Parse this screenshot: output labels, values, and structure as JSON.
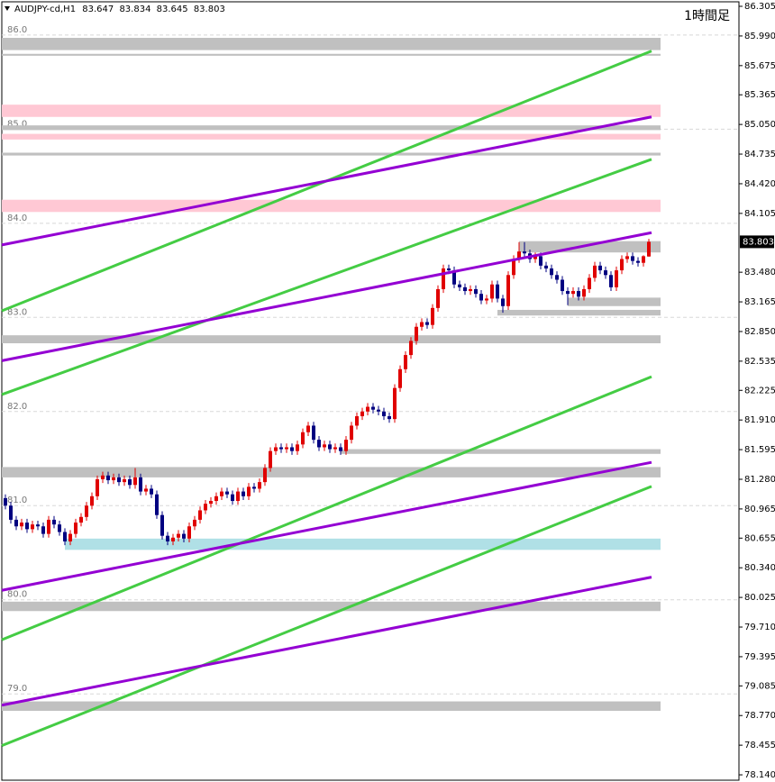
{
  "chart_data": {
    "type": "candlestick",
    "symbol": "AUDJPY-cd,H1",
    "timeframe": "1時間足",
    "up_color": "#e00000",
    "down_color": "#000080",
    "ylim": [
      78.083,
      86.353
    ],
    "yticks": [
      86.305,
      {
        "value": 85.99,
        "label": "85.990"
      },
      85.675,
      85.365,
      {
        "value": 85.05,
        "label": "85.050"
      },
      84.735,
      {
        "value": 84.42,
        "label": "84.420"
      },
      84.105,
      {
        "value": 83.48,
        "label": "83.480"
      },
      83.165,
      {
        "value": 82.85,
        "label": "82.850"
      },
      82.535,
      82.225,
      {
        "value": 81.91,
        "label": "81.910"
      },
      81.595,
      {
        "value": 81.28,
        "label": "81.280"
      },
      80.965,
      80.655,
      {
        "value": 80.34,
        "label": "80.340"
      },
      80.025,
      {
        "value": 79.71,
        "label": "79.710"
      },
      79.395,
      79.085,
      {
        "value": 78.77,
        "label": "78.770"
      },
      78.455,
      {
        "value": 78.14,
        "label": "78.140"
      }
    ],
    "inner_ticks": [
      {
        "value": 86,
        "label": "86.0"
      },
      {
        "value": 85,
        "label": "85.0"
      },
      {
        "value": 84,
        "label": "84.0"
      },
      {
        "value": 83,
        "label": "83.0"
      },
      {
        "value": 82,
        "label": "82.0"
      },
      {
        "value": 81,
        "label": "81.0"
      },
      {
        "value": 80,
        "label": "80.0"
      },
      {
        "value": 79,
        "label": "79.0"
      }
    ],
    "zones": [
      {
        "range": [
          85.84,
          85.97
        ],
        "color": "#c0c0c0"
      },
      {
        "range": [
          85.78,
          85.8
        ],
        "color": "#c0c0c0"
      },
      {
        "range": [
          85.13,
          85.26
        ],
        "color": "#ffc8d4"
      },
      {
        "range": [
          84.99,
          85.04
        ],
        "color": "#c0c0c0"
      },
      {
        "range": [
          84.89,
          84.95
        ],
        "color": "#ffc8d4"
      },
      {
        "range": [
          84.72,
          84.75
        ],
        "color": "#c0c0c0"
      },
      {
        "range": [
          84.12,
          84.25
        ],
        "color": "#ffc8d4"
      },
      {
        "range": [
          83.69,
          83.81
        ],
        "color": "#c0c0c0",
        "start": 95
      },
      {
        "range": [
          83.12,
          83.21
        ],
        "color": "#c0c0c0",
        "start": 104
      },
      {
        "range": [
          83.02,
          83.08
        ],
        "color": "#c0c0c0",
        "start": 91
      },
      {
        "range": [
          82.725,
          82.81
        ],
        "color": "#c0c0c0"
      },
      {
        "range": [
          81.55,
          81.6
        ],
        "color": "#c0c0c0",
        "start": 62
      },
      {
        "range": [
          81.3,
          81.41
        ],
        "color": "#c0c0c0"
      },
      {
        "range": [
          80.53,
          80.65
        ],
        "color": "#b0e0e6",
        "start": 11
      },
      {
        "range": [
          79.88,
          79.98
        ],
        "color": "#c0c0c0"
      },
      {
        "range": [
          78.82,
          78.92
        ],
        "color": "#c0c0c0"
      }
    ],
    "trendlines": [
      {
        "y": [
          83.07,
          85.83
        ],
        "color": "#44cc44"
      },
      {
        "y": [
          82.18,
          84.68
        ],
        "color": "#44cc44"
      },
      {
        "y": [
          79.575,
          82.37
        ],
        "color": "#44cc44"
      },
      {
        "y": [
          78.45,
          81.205
        ],
        "color": "#44cc44"
      },
      {
        "y": [
          83.77,
          85.13
        ],
        "color": "#9400d3"
      },
      {
        "y": [
          82.54,
          83.9
        ],
        "color": "#9400d3"
      },
      {
        "y": [
          80.1,
          81.46
        ],
        "color": "#9400d3"
      },
      {
        "y": [
          78.88,
          80.24
        ],
        "color": "#9400d3"
      }
    ],
    "candles": [
      [
        81.08,
        81.12,
        80.96,
        81.0
      ],
      [
        81.0,
        81.04,
        80.81,
        80.85
      ],
      [
        80.85,
        80.89,
        80.74,
        80.78
      ],
      [
        80.78,
        80.86,
        80.74,
        80.82
      ],
      [
        80.82,
        80.86,
        80.71,
        80.75
      ],
      [
        80.75,
        80.84,
        80.71,
        80.8
      ],
      [
        80.8,
        80.84,
        80.74,
        80.78
      ],
      [
        80.78,
        80.82,
        80.66,
        80.7
      ],
      [
        80.7,
        80.89,
        80.66,
        80.85
      ],
      [
        80.85,
        80.89,
        80.76,
        80.8
      ],
      [
        80.8,
        80.84,
        80.68,
        80.72
      ],
      [
        80.72,
        80.76,
        80.58,
        80.62
      ],
      [
        80.62,
        80.74,
        80.58,
        80.7
      ],
      [
        80.7,
        80.86,
        80.66,
        80.82
      ],
      [
        80.82,
        80.92,
        80.78,
        80.88
      ],
      [
        80.88,
        81.04,
        80.84,
        81.0
      ],
      [
        81.0,
        81.14,
        80.96,
        81.1
      ],
      [
        81.1,
        81.32,
        81.06,
        81.28
      ],
      [
        81.28,
        81.36,
        81.24,
        81.32
      ],
      [
        81.32,
        81.36,
        81.23,
        81.27
      ],
      [
        81.27,
        81.34,
        81.23,
        81.3
      ],
      [
        81.3,
        81.34,
        81.21,
        81.25
      ],
      [
        81.25,
        81.32,
        81.21,
        81.28
      ],
      [
        81.28,
        81.32,
        81.18,
        81.22
      ],
      [
        81.22,
        81.4,
        81.18,
        81.3
      ],
      [
        81.3,
        81.34,
        81.11,
        81.15
      ],
      [
        81.15,
        81.22,
        81.11,
        81.18
      ],
      [
        81.18,
        81.22,
        81.08,
        81.12
      ],
      [
        81.12,
        81.16,
        80.86,
        80.9
      ],
      [
        80.9,
        80.94,
        80.64,
        80.68
      ],
      [
        80.68,
        80.72,
        80.58,
        80.62
      ],
      [
        80.62,
        80.7,
        80.58,
        80.66
      ],
      [
        80.66,
        80.74,
        80.62,
        80.7
      ],
      [
        80.7,
        80.74,
        80.61,
        80.65
      ],
      [
        80.65,
        80.82,
        80.61,
        80.78
      ],
      [
        80.78,
        80.89,
        80.74,
        80.85
      ],
      [
        80.85,
        80.99,
        80.81,
        80.95
      ],
      [
        80.95,
        81.06,
        80.91,
        81.02
      ],
      [
        81.02,
        81.09,
        80.98,
        81.05
      ],
      [
        81.05,
        81.14,
        81.01,
        81.1
      ],
      [
        81.1,
        81.19,
        81.06,
        81.15
      ],
      [
        81.15,
        81.19,
        81.08,
        81.12
      ],
      [
        81.12,
        81.16,
        81.01,
        81.05
      ],
      [
        81.05,
        81.19,
        81.01,
        81.15
      ],
      [
        81.15,
        81.19,
        81.06,
        81.1
      ],
      [
        81.1,
        81.24,
        81.06,
        81.2
      ],
      [
        81.2,
        81.24,
        81.14,
        81.18
      ],
      [
        81.18,
        81.29,
        81.14,
        81.25
      ],
      [
        81.25,
        81.44,
        81.21,
        81.4
      ],
      [
        81.4,
        81.62,
        81.36,
        81.58
      ],
      [
        81.58,
        81.66,
        81.54,
        81.62
      ],
      [
        81.62,
        81.66,
        81.56,
        81.6
      ],
      [
        81.6,
        81.66,
        81.56,
        81.62
      ],
      [
        81.62,
        81.66,
        81.54,
        81.58
      ],
      [
        81.58,
        81.69,
        81.54,
        81.65
      ],
      [
        81.65,
        81.82,
        81.61,
        81.78
      ],
      [
        81.78,
        81.89,
        81.74,
        81.85
      ],
      [
        81.85,
        81.89,
        81.66,
        81.7
      ],
      [
        81.7,
        81.74,
        81.58,
        81.62
      ],
      [
        81.62,
        81.69,
        81.58,
        81.65
      ],
      [
        81.65,
        81.69,
        81.56,
        81.6
      ],
      [
        81.6,
        81.66,
        81.56,
        81.62
      ],
      [
        81.62,
        81.66,
        81.54,
        81.58
      ],
      [
        81.58,
        81.74,
        81.54,
        81.7
      ],
      [
        81.7,
        81.89,
        81.66,
        81.85
      ],
      [
        81.85,
        81.99,
        81.81,
        81.95
      ],
      [
        81.95,
        82.04,
        81.91,
        82.0
      ],
      [
        82.0,
        82.09,
        81.96,
        82.05
      ],
      [
        82.05,
        82.09,
        81.98,
        82.02
      ],
      [
        82.02,
        82.06,
        81.96,
        82.0
      ],
      [
        82.0,
        82.04,
        81.91,
        81.95
      ],
      [
        81.95,
        81.99,
        81.88,
        81.92
      ],
      [
        81.92,
        82.29,
        81.88,
        82.25
      ],
      [
        82.25,
        82.49,
        82.21,
        82.45
      ],
      [
        82.45,
        82.64,
        82.41,
        82.6
      ],
      [
        82.6,
        82.79,
        82.56,
        82.75
      ],
      [
        82.75,
        82.94,
        82.71,
        82.9
      ],
      [
        82.9,
        82.99,
        82.86,
        82.95
      ],
      [
        82.95,
        82.99,
        82.88,
        82.92
      ],
      [
        82.92,
        83.14,
        82.88,
        83.1
      ],
      [
        83.1,
        83.34,
        83.06,
        83.3
      ],
      [
        83.3,
        83.56,
        83.26,
        83.52
      ],
      [
        83.52,
        83.56,
        83.46,
        83.5
      ],
      [
        83.5,
        83.54,
        83.31,
        83.35
      ],
      [
        83.35,
        83.39,
        83.28,
        83.32
      ],
      [
        83.32,
        83.36,
        83.24,
        83.28
      ],
      [
        83.28,
        83.34,
        83.24,
        83.3
      ],
      [
        83.3,
        83.34,
        83.21,
        83.25
      ],
      [
        83.25,
        83.29,
        83.14,
        83.18
      ],
      [
        83.18,
        83.24,
        83.14,
        83.2
      ],
      [
        83.2,
        83.39,
        83.16,
        83.35
      ],
      [
        83.35,
        83.39,
        83.16,
        83.2
      ],
      [
        83.2,
        83.24,
        83.05,
        83.12
      ],
      [
        83.12,
        83.49,
        83.08,
        83.45
      ],
      [
        83.45,
        83.66,
        83.41,
        83.62
      ],
      [
        83.62,
        83.8,
        83.58,
        83.7
      ],
      [
        83.7,
        83.8,
        83.64,
        83.68
      ],
      [
        83.68,
        83.72,
        83.58,
        83.62
      ],
      [
        83.62,
        83.69,
        83.58,
        83.65
      ],
      [
        83.65,
        83.69,
        83.51,
        83.55
      ],
      [
        83.55,
        83.59,
        83.48,
        83.52
      ],
      [
        83.52,
        83.56,
        83.41,
        83.45
      ],
      [
        83.45,
        83.49,
        83.36,
        83.4
      ],
      [
        83.4,
        83.44,
        83.24,
        83.28
      ],
      [
        83.28,
        83.32,
        83.13,
        83.25
      ],
      [
        83.25,
        83.32,
        83.21,
        83.28
      ],
      [
        83.28,
        83.32,
        83.18,
        83.22
      ],
      [
        83.22,
        83.34,
        83.18,
        83.3
      ],
      [
        83.3,
        83.46,
        83.26,
        83.42
      ],
      [
        83.42,
        83.59,
        83.38,
        83.55
      ],
      [
        83.55,
        83.59,
        83.46,
        83.5
      ],
      [
        83.5,
        83.54,
        83.41,
        83.45
      ],
      [
        83.45,
        83.49,
        83.28,
        83.32
      ],
      [
        83.32,
        83.54,
        83.28,
        83.5
      ],
      [
        83.5,
        83.66,
        83.46,
        83.62
      ],
      [
        83.62,
        83.69,
        83.58,
        83.65
      ],
      [
        83.65,
        83.69,
        83.56,
        83.6
      ],
      [
        83.6,
        83.64,
        83.54,
        83.58
      ],
      [
        83.58,
        83.66,
        83.54,
        83.65
      ],
      [
        83.647,
        83.834,
        83.645,
        83.803
      ]
    ]
  }
}
